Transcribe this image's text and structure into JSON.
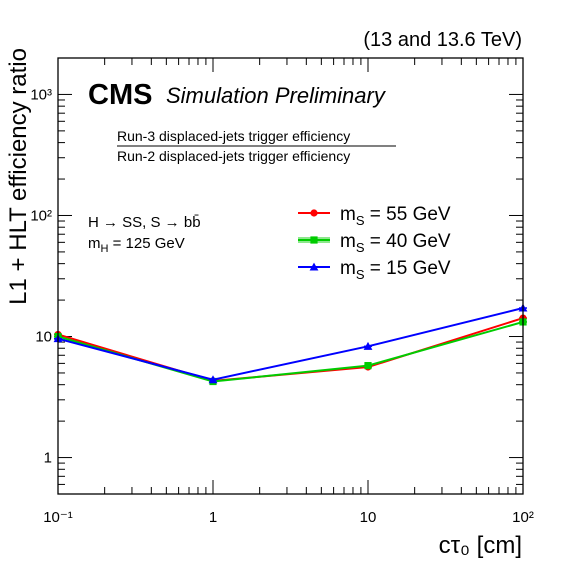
{
  "chart_data": {
    "type": "line",
    "energy_label": "(13 and 13.6 TeV)",
    "experiment": "CMS",
    "status": "Simulation Preliminary",
    "ratio_numerator": "Run-3 displaced-jets trigger efficiency",
    "ratio_denominator": "Run-2 displaced-jets trigger efficiency",
    "process_line1": "H → SS, S → bb̄",
    "process_line2": "m_H = 125 GeV",
    "xlabel": "cτ₀ [cm]",
    "ylabel": "L1 + HLT efficiency ratio",
    "xscale": "log",
    "yscale": "log",
    "xlim": [
      0.1,
      100
    ],
    "ylim": [
      0.5,
      2000
    ],
    "x_ticks": [
      0.1,
      1,
      10,
      100
    ],
    "x_tick_labels": [
      "10⁻¹",
      "1",
      "10",
      "10²"
    ],
    "y_ticks": [
      1,
      10,
      100,
      1000
    ],
    "y_tick_labels": [
      "1",
      "10",
      "10²",
      "10³"
    ],
    "legend_position": "upper-right",
    "grid": false,
    "x": [
      0.1,
      1,
      10,
      100
    ],
    "series": [
      {
        "name": "m_S = 55 GeV",
        "color": "#ff0000",
        "marker": "circle",
        "values": [
          10.4,
          4.3,
          5.6,
          14.2
        ]
      },
      {
        "name": "m_S = 40 GeV",
        "color": "#00cc00",
        "marker": "square",
        "values": [
          10.0,
          4.25,
          5.75,
          13.2
        ]
      },
      {
        "name": "m_S = 15 GeV",
        "color": "#0000ff",
        "marker": "triangle",
        "values": [
          9.6,
          4.4,
          8.3,
          17.2
        ]
      }
    ]
  }
}
